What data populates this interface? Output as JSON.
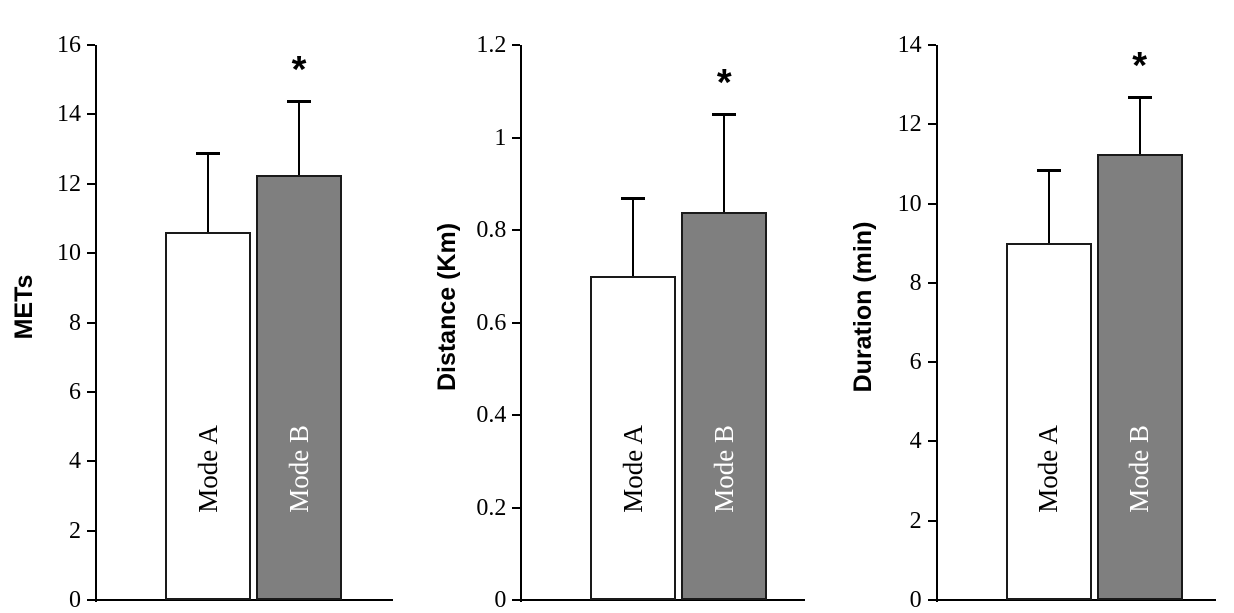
{
  "colors": {
    "background": "#ffffff",
    "axis": "#000000",
    "bar_border": "#1a1a1a"
  },
  "chart_data": [
    {
      "type": "bar",
      "title": "",
      "xlabel": "",
      "ylabel": "METs",
      "ylim": [
        0,
        16
      ],
      "ytick_step": 2,
      "grid": false,
      "legend": "none",
      "categories": [
        "Mode A",
        "Mode B"
      ],
      "values": [
        10.6,
        12.25
      ],
      "errors_plus": [
        2.3,
        2.15
      ],
      "annotations": [
        "",
        "*"
      ],
      "bar_colors": [
        "#ffffff",
        "#7f7f7f"
      ],
      "bar_label_colors": [
        "#000000",
        "#ffffff"
      ]
    },
    {
      "type": "bar",
      "title": "",
      "xlabel": "",
      "ylabel": "Distance (Km)",
      "ylim": [
        0,
        1.2
      ],
      "ytick_step": 0.2,
      "grid": false,
      "legend": "none",
      "categories": [
        "Mode A",
        "Mode B"
      ],
      "values": [
        0.7,
        0.84
      ],
      "errors_plus": [
        0.17,
        0.21
      ],
      "annotations": [
        "",
        "*"
      ],
      "bar_colors": [
        "#ffffff",
        "#7f7f7f"
      ],
      "bar_label_colors": [
        "#000000",
        "#ffffff"
      ]
    },
    {
      "type": "bar",
      "title": "",
      "xlabel": "",
      "ylabel": "Duration (min)",
      "ylim": [
        0,
        14
      ],
      "ytick_step": 2,
      "grid": false,
      "legend": "none",
      "categories": [
        "Mode A",
        "Mode B"
      ],
      "values": [
        9.0,
        11.25
      ],
      "errors_plus": [
        1.85,
        1.45
      ],
      "annotations": [
        "",
        "*"
      ],
      "bar_colors": [
        "#ffffff",
        "#7f7f7f"
      ],
      "bar_label_colors": [
        "#000000",
        "#ffffff"
      ]
    }
  ]
}
